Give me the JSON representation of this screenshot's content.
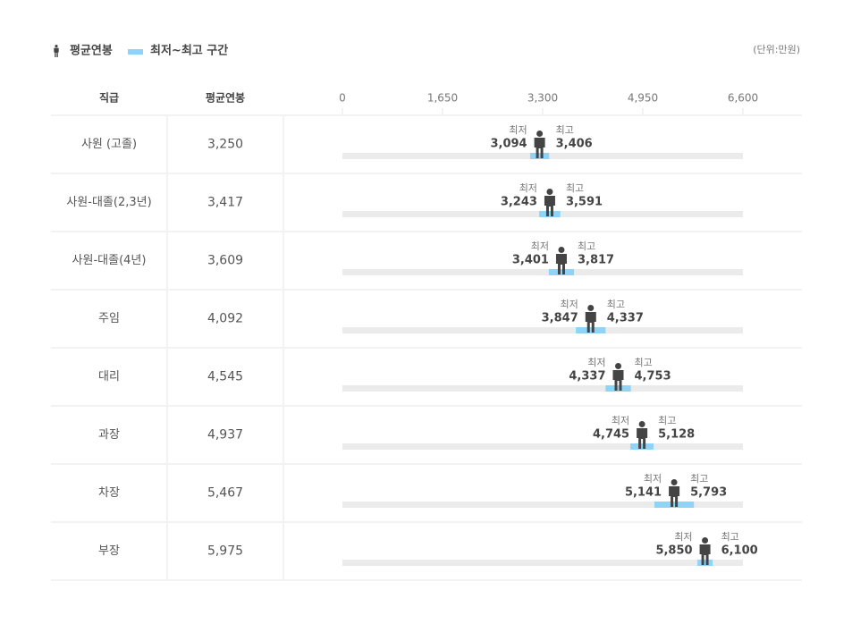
{
  "chart_data": {
    "type": "range",
    "unit": "(단위:만원)",
    "columns": [
      "직급",
      "평균연봉"
    ],
    "categories": [
      "사원 (고졸)",
      "사원-대졸(2,3년)",
      "사원-대졸(4년)",
      "주임",
      "대리",
      "과장",
      "차장",
      "부장"
    ],
    "series": [
      {
        "name": "평균연봉",
        "color": "#444444",
        "values": [
          3250,
          3417,
          3609,
          4092,
          4545,
          4937,
          5467,
          5975
        ],
        "value_labels": [
          "3,250",
          "3,417",
          "3,609",
          "4,092",
          "4,545",
          "4,937",
          "5,467",
          "5,975"
        ]
      }
    ],
    "range": {
      "name": "최저~최고 구간",
      "color": "#8fd3f7",
      "low_name": "최저",
      "high_name": "최고",
      "low": [
        3094,
        3243,
        3401,
        3847,
        4337,
        4745,
        5141,
        5850
      ],
      "low_labels": [
        "3,094",
        "3,243",
        "3,401",
        "3,847",
        "4,337",
        "4,745",
        "5,141",
        "5,850"
      ],
      "high": [
        3406,
        3591,
        3817,
        4337,
        4753,
        5128,
        5793,
        6100
      ],
      "high_labels": [
        "3,406",
        "3,591",
        "3,817",
        "4,337",
        "4,753",
        "5,128",
        "5,793",
        "6,100"
      ]
    },
    "xlim": [
      0,
      6600
    ],
    "xticks": [
      0,
      {
        "value": 1650,
        "label": "1,650"
      },
      {
        "value": 3300,
        "label": "3,300"
      },
      {
        "value": 4950,
        "label": "4,950"
      },
      {
        "value": 6600,
        "label": "6,600"
      }
    ]
  }
}
